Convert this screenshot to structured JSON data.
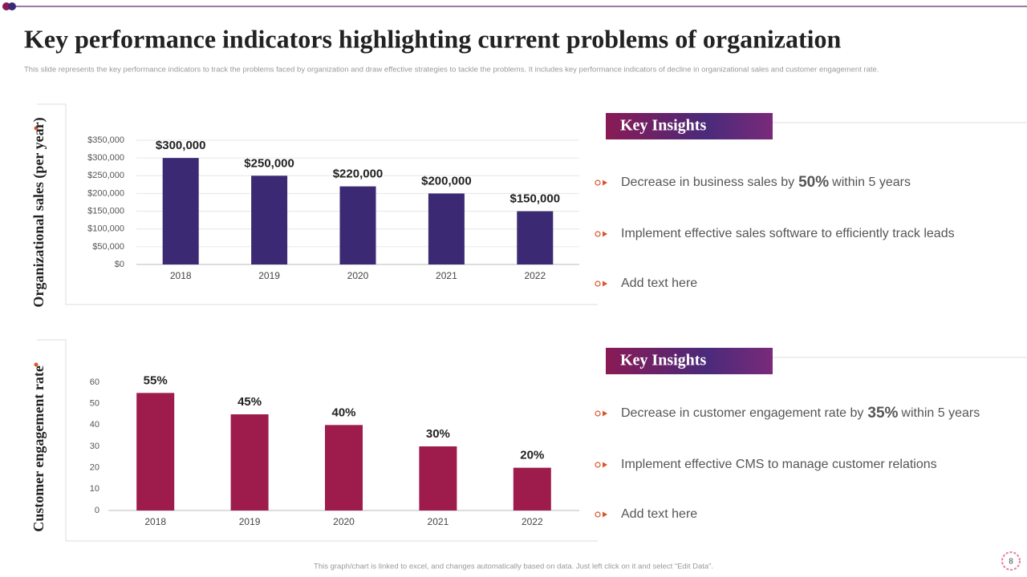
{
  "title": "Key performance indicators highlighting current problems of organization",
  "subtitle": "This slide represents the key performance indicators to track the problems faced by organization and draw effective strategies to tackle the problems. It includes key performance indicators of decline in organizational sales and customer engagement rate.",
  "chart_data": [
    {
      "type": "bar",
      "ylabel": "Organizational sales (per year)",
      "categories": [
        "2018",
        "2019",
        "2020",
        "2021",
        "2022"
      ],
      "values": [
        300000,
        250000,
        220000,
        200000,
        150000
      ],
      "value_labels": [
        "$300,000",
        "$250,000",
        "$220,000",
        "$200,000",
        "$150,000"
      ],
      "color": "#3b2a73",
      "ylim": [
        0,
        350000
      ],
      "yticks": [
        {
          "value": 0,
          "label": "$0"
        },
        {
          "value": 50000,
          "label": "$50,000"
        },
        {
          "value": 100000,
          "label": "$100,000"
        },
        {
          "value": 150000,
          "label": "$150,000"
        },
        {
          "value": 200000,
          "label": "$200,000"
        },
        {
          "value": 250000,
          "label": "$250,000"
        },
        {
          "value": 300000,
          "label": "$300,000"
        },
        {
          "value": 350000,
          "label": "$350,000"
        }
      ],
      "grid": true
    },
    {
      "type": "bar",
      "ylabel": "Customer engagement rate",
      "categories": [
        "2018",
        "2019",
        "2020",
        "2021",
        "2022"
      ],
      "values": [
        55,
        45,
        40,
        30,
        20
      ],
      "value_labels": [
        "55%",
        "45%",
        "40%",
        "30%",
        "20%"
      ],
      "color": "#9e1c4c",
      "ylim": [
        0,
        60
      ],
      "yticks": [
        0,
        10,
        20,
        30,
        40,
        50,
        60
      ],
      "grid": false
    }
  ],
  "insights": [
    {
      "heading": "Key Insights",
      "items": [
        {
          "before": "Decrease in business sales by",
          "highlight": "50%",
          "after": "within 5 years"
        },
        {
          "before": "Implement effective sales software to efficiently track leads"
        },
        {
          "before": "Add text here"
        }
      ]
    },
    {
      "heading": "Key Insights",
      "items": [
        {
          "before": "Decrease in customer engagement rate by",
          "highlight": "35%",
          "after": "within 5 years"
        },
        {
          "before": "Implement effective CMS to manage customer relations"
        },
        {
          "before": "Add text here"
        }
      ]
    }
  ],
  "footer": "This graph/chart is linked to excel, and changes automatically based on data. Just left click on it and select “Edit Data”.",
  "page_number": "8"
}
